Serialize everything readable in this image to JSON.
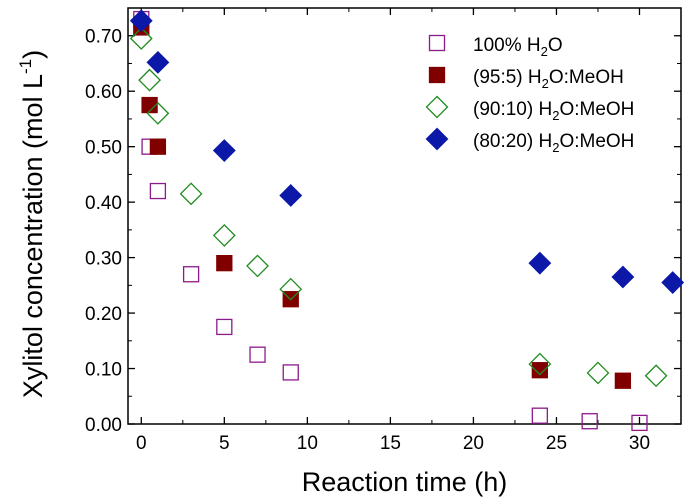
{
  "chart_data": {
    "type": "scatter",
    "xlabel": "Reaction time (h)",
    "ylabel_main": "Xylitol concentration (mol L",
    "ylabel_sup": "-1",
    "ylabel_close": ")",
    "xlim": [
      -0.8,
      32.5
    ],
    "ylim": [
      0,
      0.75
    ],
    "xticks": [
      0,
      5,
      10,
      15,
      20,
      25,
      30
    ],
    "xtick_labels": [
      "0",
      "5",
      "10",
      "15",
      "20",
      "25",
      "30"
    ],
    "yticks": [
      0,
      0.1,
      0.2,
      0.3,
      0.4,
      0.5,
      0.6,
      0.7
    ],
    "ytick_labels": [
      "0.00",
      "0.10",
      "0.20",
      "0.30",
      "0.40",
      "0.50",
      "0.60",
      "0.70"
    ],
    "legend_position": "top-right",
    "series": [
      {
        "legend_parts": [
          [
            "100% H",
            "normal"
          ],
          [
            "2",
            "sub"
          ],
          [
            "O",
            "normal"
          ]
        ],
        "marker": "square-open",
        "color": "#8B1A8B",
        "x": [
          0,
          0.5,
          1,
          3,
          5,
          7,
          9,
          24,
          27,
          30
        ],
        "y": [
          0.73,
          0.5,
          0.42,
          0.27,
          0.175,
          0.125,
          0.093,
          0.015,
          0.005,
          0.002
        ]
      },
      {
        "legend_parts": [
          [
            "(95:5) H",
            "normal"
          ],
          [
            "2",
            "sub"
          ],
          [
            "O:MeOH",
            "normal"
          ]
        ],
        "marker": "square-filled",
        "color": "#800000",
        "x": [
          0,
          0.5,
          1,
          5,
          9,
          24,
          29
        ],
        "y": [
          0.715,
          0.575,
          0.5,
          0.29,
          0.225,
          0.097,
          0.078
        ]
      },
      {
        "legend_parts": [
          [
            "(90:10) H",
            "normal"
          ],
          [
            "2",
            "sub"
          ],
          [
            "O:MeOH",
            "normal"
          ]
        ],
        "marker": "diamond-open",
        "color": "#1E8C1E",
        "x": [
          0,
          0.5,
          1,
          3,
          5,
          7,
          9,
          24,
          27.5,
          31
        ],
        "y": [
          0.695,
          0.62,
          0.56,
          0.415,
          0.34,
          0.285,
          0.243,
          0.108,
          0.092,
          0.087
        ]
      },
      {
        "legend_parts": [
          [
            "(80:20) H",
            "normal"
          ],
          [
            "2",
            "sub"
          ],
          [
            "O:MeOH",
            "normal"
          ]
        ],
        "marker": "diamond-filled",
        "color": "#0B18A8",
        "x": [
          0,
          1,
          5,
          9,
          24,
          29,
          32
        ],
        "y": [
          0.727,
          0.652,
          0.493,
          0.412,
          0.29,
          0.265,
          0.255
        ]
      }
    ]
  }
}
